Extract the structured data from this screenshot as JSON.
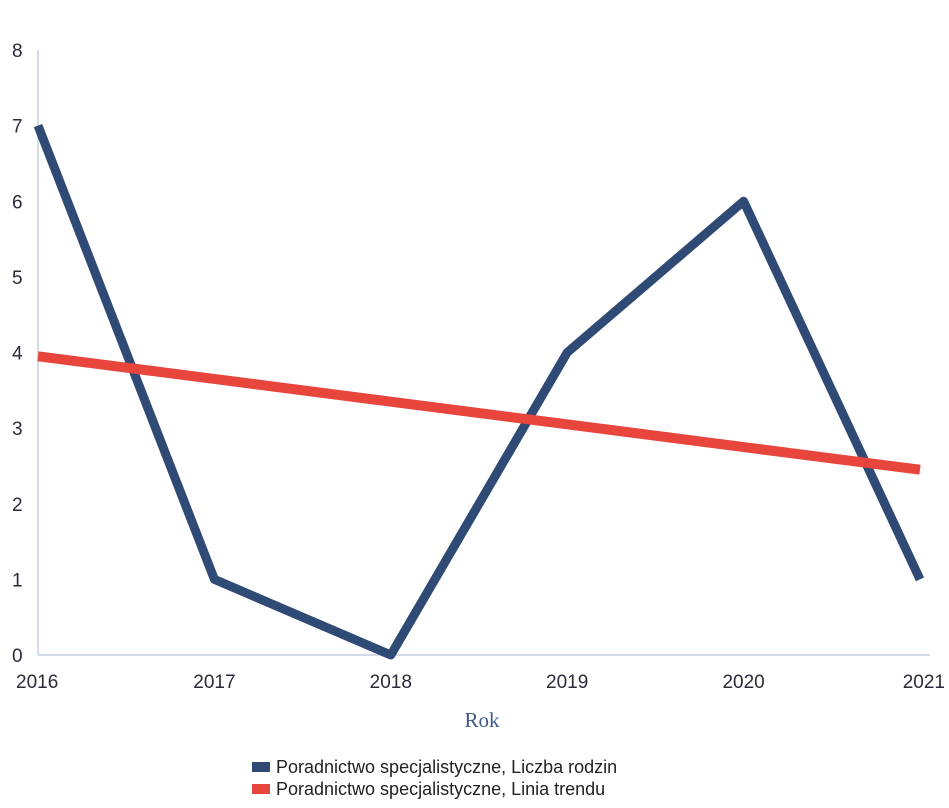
{
  "chart_data": {
    "type": "line",
    "x": [
      "2016",
      "2017",
      "2018",
      "2019",
      "2020",
      "2021"
    ],
    "series": [
      {
        "name": "Poradnictwo specjalistyczne, Liczba rodzin",
        "values": [
          7,
          1,
          0,
          4,
          6,
          1
        ],
        "color": "#2f4a75"
      },
      {
        "name": "Poradnictwo specjalistyczne, Linia trendu",
        "values": [
          3.95,
          3.65,
          3.35,
          3.05,
          2.75,
          2.45
        ],
        "color": "#e8453c"
      }
    ],
    "yticks": [
      "0",
      "1",
      "2",
      "3",
      "4",
      "5",
      "6",
      "7",
      "8"
    ],
    "ylim": [
      0,
      8
    ],
    "xlabel": "Rok",
    "ylabel": "",
    "grid": false,
    "legend_position": "bottom"
  }
}
